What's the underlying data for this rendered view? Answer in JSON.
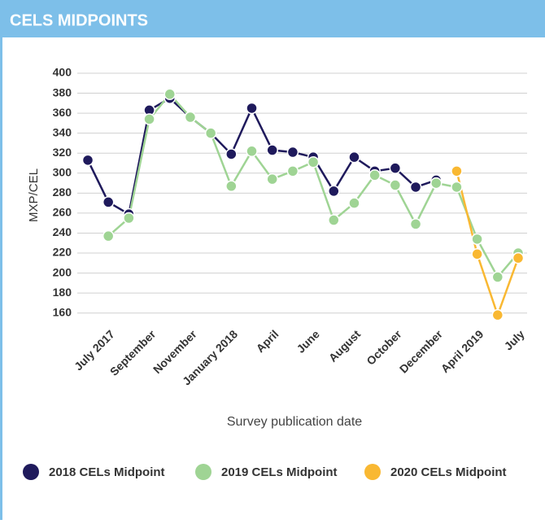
{
  "chart_data": {
    "type": "line",
    "title": "CELS MIDPOINTS",
    "ylabel": "MXP/CEL",
    "xlabel": "Survey publication date",
    "categories": [
      null,
      "July 2017",
      null,
      "September",
      null,
      "November",
      null,
      "January 2018",
      null,
      "April",
      null,
      "June",
      null,
      "August",
      null,
      "October",
      null,
      "December",
      null,
      "April 2019",
      null,
      "July"
    ],
    "series": [
      {
        "name": "2018 CELs Midpoint",
        "color": "#1f1a5c",
        "values": [
          313,
          271,
          259,
          363,
          375,
          356,
          340,
          319,
          365,
          323,
          321,
          316,
          282,
          316,
          302,
          305,
          286,
          293,
          null,
          null,
          null,
          null
        ]
      },
      {
        "name": "2019 CELs Midpoint",
        "color": "#9fd494",
        "values": [
          null,
          237,
          255,
          354,
          379,
          356,
          340,
          287,
          322,
          294,
          302,
          311,
          253,
          270,
          298,
          288,
          249,
          290,
          286,
          234,
          196,
          220
        ]
      },
      {
        "name": "2020 CELs Midpoint",
        "color": "#f9b832",
        "values": [
          null,
          null,
          null,
          null,
          null,
          null,
          null,
          null,
          null,
          null,
          null,
          null,
          null,
          null,
          null,
          null,
          null,
          null,
          302,
          219,
          158,
          215
        ]
      }
    ],
    "ylim": [
      150,
      400
    ],
    "yticks": [
      160,
      180,
      200,
      220,
      240,
      260,
      280,
      300,
      320,
      340,
      360,
      380,
      400
    ],
    "grid": true,
    "legend": "bottom"
  }
}
